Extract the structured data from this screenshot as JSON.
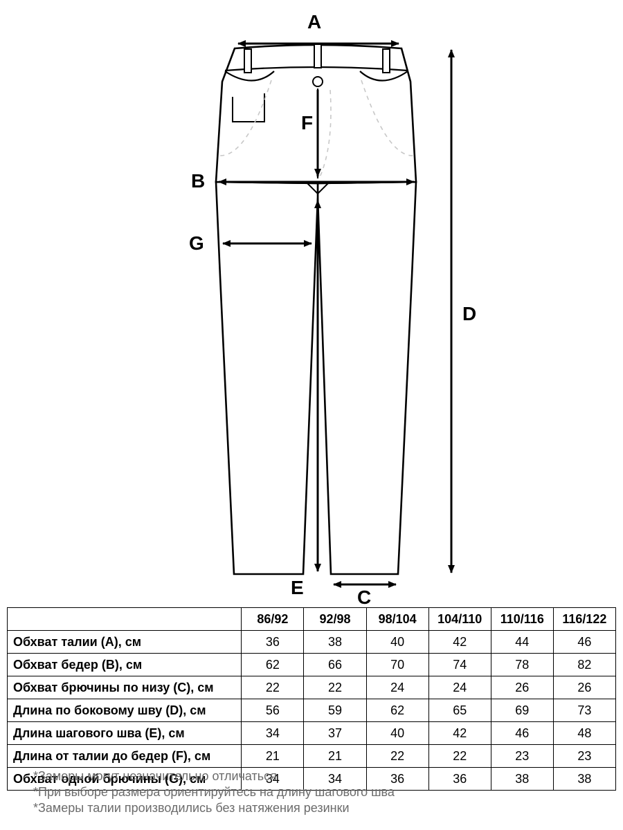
{
  "diagram": {
    "labels": {
      "A": "A",
      "B": "B",
      "C": "C",
      "D": "D",
      "E": "E",
      "F": "F",
      "G": "G"
    },
    "stroke": "#000000",
    "fill": "#ffffff",
    "faint": "#c8c8c8",
    "line_w_outline": 2.6,
    "line_w_arrow": 3.0
  },
  "table": {
    "columns": [
      "86/92",
      "92/98",
      "98/104",
      "104/110",
      "110/116",
      "116/122"
    ],
    "rows": [
      {
        "label": "Обхват талии (А), см",
        "values": [
          36,
          38,
          40,
          42,
          44,
          46
        ]
      },
      {
        "label": "Обхват бедер (В), см",
        "values": [
          62,
          66,
          70,
          74,
          78,
          82
        ]
      },
      {
        "label": "Обхват брючины по низу (С), см",
        "values": [
          22,
          22,
          24,
          24,
          26,
          26
        ]
      },
      {
        "label": "Длина по боковому шву (D), см",
        "values": [
          56,
          59,
          62,
          65,
          69,
          73
        ]
      },
      {
        "label": "Длина шагового шва (Е), см",
        "values": [
          34,
          37,
          40,
          42,
          46,
          48
        ]
      },
      {
        "label": "Длина от талии до бедер (F), см",
        "values": [
          21,
          21,
          22,
          22,
          23,
          23
        ]
      },
      {
        "label": "Обхват одной брючины (G), см",
        "values": [
          34,
          34,
          36,
          36,
          38,
          38
        ]
      }
    ],
    "border_color": "#000000",
    "header_bg": "#ffffff",
    "font_size": 18
  },
  "notes": {
    "lines": [
      "*Замеры могут незначительно отличаться",
      "*При выборе размера ориентируйтесь на длину шагового шва",
      "*Замеры талии производились без натяжения резинки"
    ],
    "color": "#6b6b6b",
    "font_size": 18
  }
}
